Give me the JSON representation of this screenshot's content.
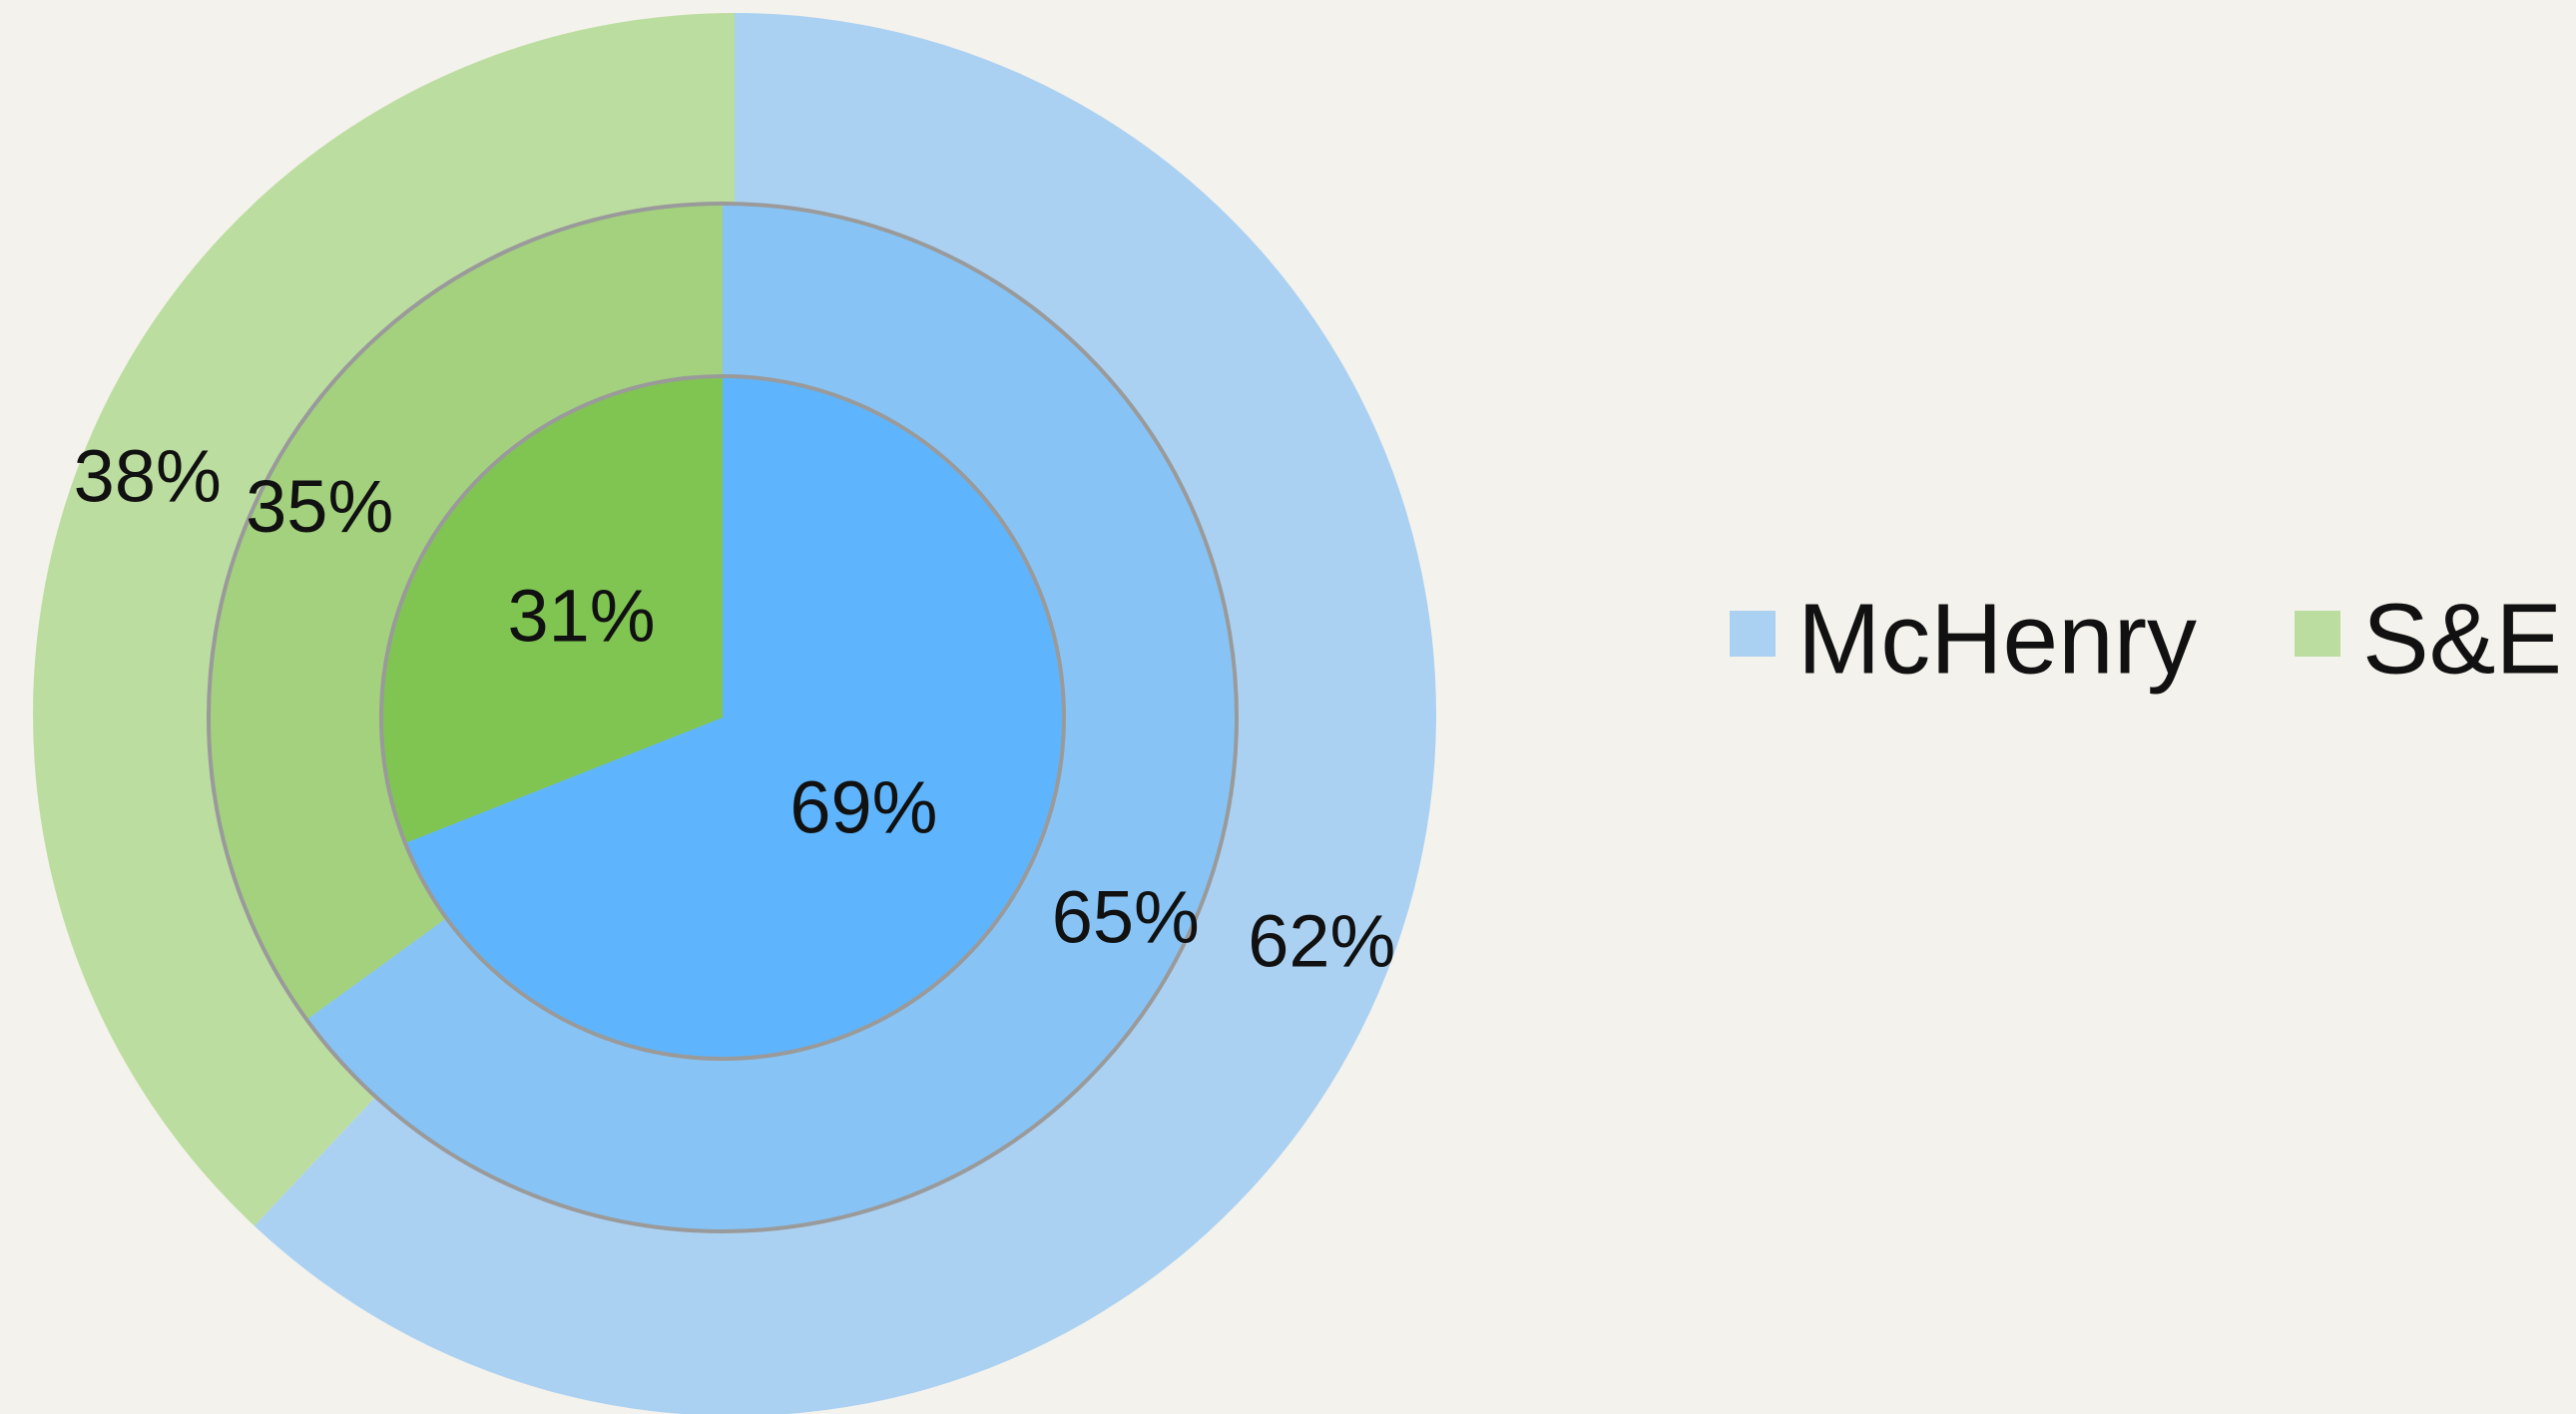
{
  "chart_data": {
    "type": "nested-pie",
    "categories": [
      "McHenry",
      "S&E"
    ],
    "colors": [
      "#abd1f2",
      "#bcdda0"
    ],
    "rings": [
      {
        "values": [
          62,
          38
        ],
        "value_labels": [
          "62%",
          "38%"
        ],
        "colors": [
          "#abd1f2",
          "#bcdda0"
        ]
      },
      {
        "values": [
          65,
          35
        ],
        "value_labels": [
          "65%",
          "35%"
        ],
        "colors": [
          "#87c4f5",
          "#a3d17e"
        ]
      },
      {
        "values": [
          69,
          31
        ],
        "value_labels": [
          "69%",
          "31%"
        ],
        "colors": [
          "#5eb5fd",
          "#80c552"
        ]
      }
    ],
    "legend": "right"
  }
}
